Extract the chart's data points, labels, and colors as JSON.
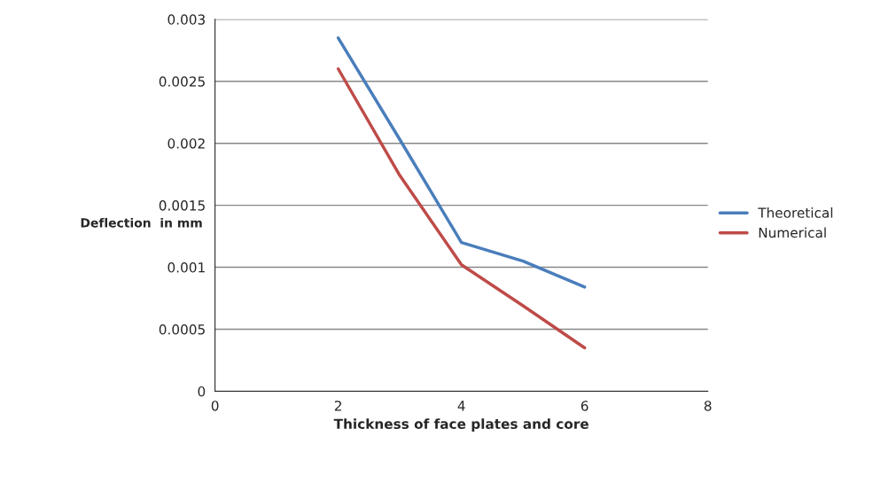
{
  "chart_data": {
    "type": "line",
    "xlabel": "Thickness of face plates and core",
    "ylabel": "Deflection  in mm",
    "x": [
      2,
      3,
      4,
      5,
      6
    ],
    "series": [
      {
        "name": "Theoretical",
        "color": "#4a7ebb",
        "values": [
          0.00285,
          0.00203,
          0.0012,
          0.00105,
          0.00084
        ]
      },
      {
        "name": "Numerical",
        "color": "#be4b48",
        "values": [
          0.0026,
          0.00174,
          0.00102,
          0.00069,
          0.00035
        ]
      }
    ],
    "xlim": [
      0,
      8
    ],
    "xticks": [
      0,
      2,
      4,
      6,
      8
    ],
    "ylim": [
      0,
      0.003
    ],
    "yticks": [
      0,
      0.0005,
      0.001,
      0.0015,
      0.002,
      0.0025,
      0.003
    ],
    "grid": "y",
    "legend": "right",
    "marker": "none",
    "line_style": "solid"
  }
}
